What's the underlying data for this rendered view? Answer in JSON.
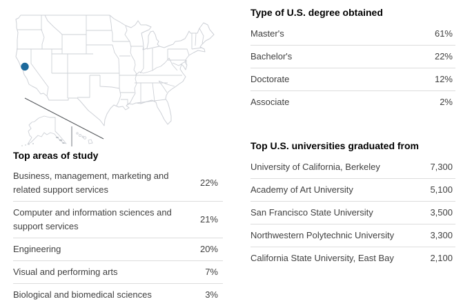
{
  "map": {
    "description": "United States outline map with location marker",
    "marker_location": "San Francisco Bay Area, California",
    "marker_color": "#1d6a9c",
    "border_color": "#cdd0d6"
  },
  "chart_data": [
    {
      "type": "table",
      "title": "Type of U.S. degree obtained",
      "rows": [
        [
          "Master's",
          "61%"
        ],
        [
          "Bachelor's",
          "22%"
        ],
        [
          "Doctorate",
          "12%"
        ],
        [
          "Associate",
          "2%"
        ]
      ]
    },
    {
      "type": "table",
      "title": "Top areas of study",
      "rows": [
        [
          "Business, management, marketing and related support services",
          "22%"
        ],
        [
          "Computer and information sciences and support services",
          "21%"
        ],
        [
          "Engineering",
          "20%"
        ],
        [
          "Visual and performing arts",
          "7%"
        ],
        [
          "Biological and biomedical sciences",
          "3%"
        ]
      ]
    },
    {
      "type": "table",
      "title": "Top U.S. universities graduated from",
      "rows": [
        [
          "University of California, Berkeley",
          "7,300"
        ],
        [
          "Academy of Art University",
          "5,100"
        ],
        [
          "San Francisco State University",
          "3,500"
        ],
        [
          "Northwestern Polytechnic University",
          "3,300"
        ],
        [
          "California State University, East Bay",
          "2,100"
        ]
      ]
    }
  ]
}
